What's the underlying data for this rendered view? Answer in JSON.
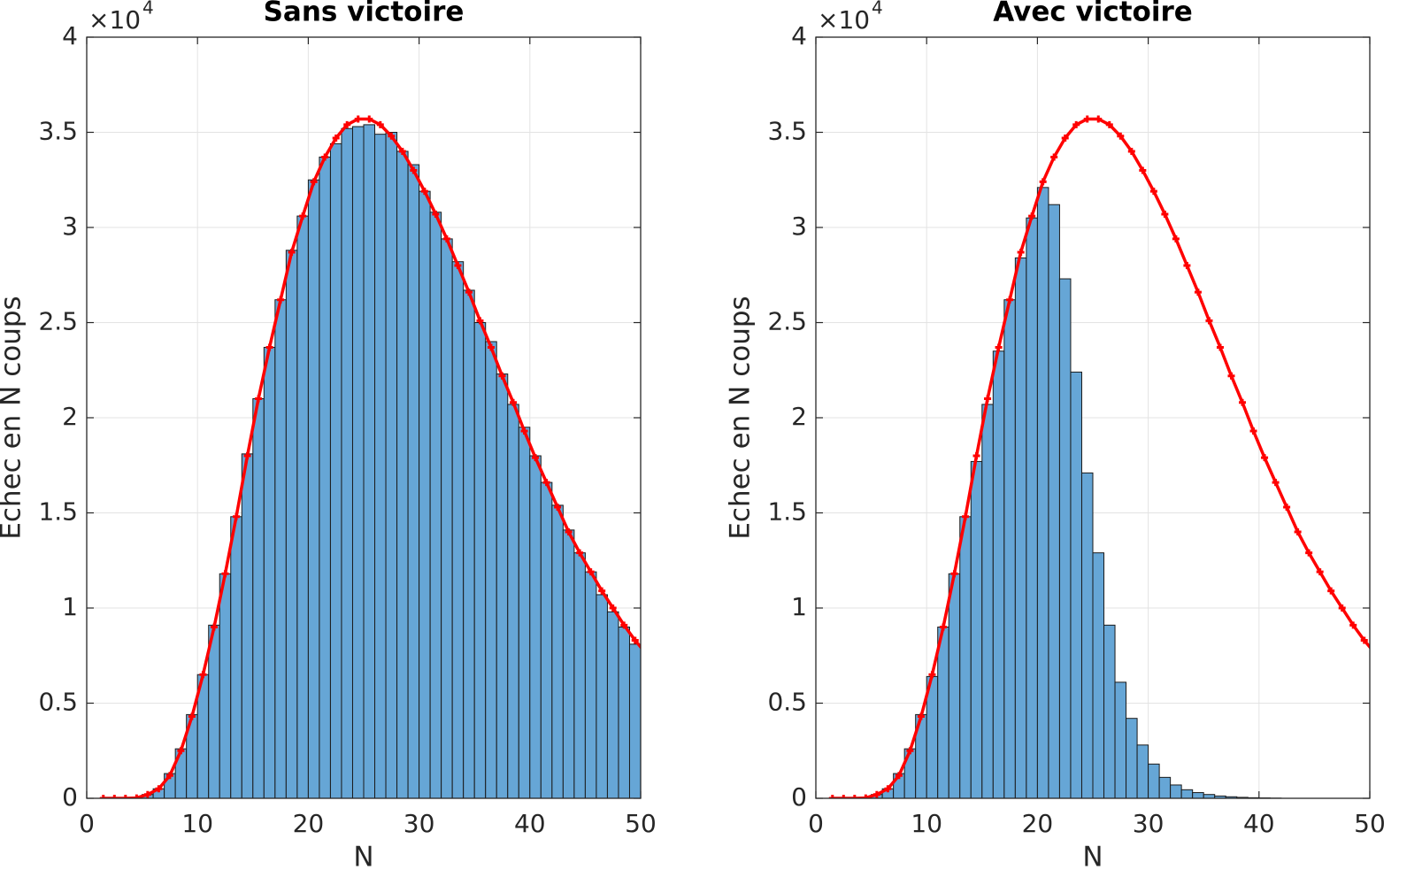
{
  "chart_data": [
    {
      "type": "histogram",
      "title": "Sans victoire",
      "xlabel": "N",
      "ylabel": "Echec en N coups",
      "y_multiplier": {
        "base": "×10",
        "exponent": "4"
      },
      "xlim": [
        0,
        50
      ],
      "ylim": [
        0,
        4
      ],
      "xticks": [
        0,
        10,
        20,
        30,
        40,
        50
      ],
      "yticks": [
        0,
        0.5,
        1,
        1.5,
        2,
        2.5,
        3,
        3.5,
        4
      ],
      "grid": true,
      "color": "#66a6d6",
      "bins": [
        0,
        1,
        2,
        3,
        4,
        5,
        6,
        7,
        8,
        9,
        10,
        11,
        12,
        13,
        14,
        15,
        16,
        17,
        18,
        19,
        20,
        21,
        22,
        23,
        24,
        25,
        26,
        27,
        28,
        29,
        30,
        31,
        32,
        33,
        34,
        35,
        36,
        37,
        38,
        39,
        40,
        41,
        42,
        43,
        44,
        45,
        46,
        47,
        48,
        49,
        50
      ],
      "values": [
        0,
        0,
        0,
        0,
        0,
        0.02,
        0.05,
        0.13,
        0.26,
        0.44,
        0.65,
        0.91,
        1.18,
        1.48,
        1.81,
        2.1,
        2.37,
        2.62,
        2.88,
        3.06,
        3.25,
        3.37,
        3.44,
        3.52,
        3.53,
        3.54,
        3.49,
        3.5,
        3.4,
        3.33,
        3.19,
        3.08,
        2.94,
        2.82,
        2.67,
        2.5,
        2.4,
        2.23,
        2.07,
        1.95,
        1.8,
        1.66,
        1.54,
        1.41,
        1.29,
        1.19,
        1.07,
        0.98,
        0.9,
        0.81
      ],
      "curve": {
        "color": "#ff0000",
        "x": [
          1.5,
          2.5,
          3.5,
          4.5,
          5.5,
          6.5,
          7.5,
          8.5,
          9.5,
          10.5,
          11.5,
          12.5,
          13.5,
          14.5,
          15.5,
          16.5,
          17.5,
          18.5,
          19.5,
          20.5,
          21.5,
          22.5,
          23.5,
          24.5,
          25.5,
          26.5,
          27.5,
          28.5,
          29.5,
          30.5,
          31.5,
          32.5,
          33.5,
          34.5,
          35.5,
          36.5,
          37.5,
          38.5,
          39.5,
          40.5,
          41.5,
          42.5,
          43.5,
          44.5,
          45.5,
          46.5,
          47.5,
          48.5,
          49.5,
          50.5
        ],
        "values": [
          0,
          0,
          0,
          0.002,
          0.02,
          0.05,
          0.12,
          0.25,
          0.43,
          0.65,
          0.9,
          1.18,
          1.48,
          1.8,
          2.1,
          2.37,
          2.62,
          2.87,
          3.06,
          3.24,
          3.37,
          3.47,
          3.54,
          3.57,
          3.57,
          3.54,
          3.48,
          3.4,
          3.3,
          3.19,
          3.07,
          2.94,
          2.8,
          2.66,
          2.51,
          2.37,
          2.22,
          2.08,
          1.93,
          1.79,
          1.66,
          1.53,
          1.4,
          1.29,
          1.19,
          1.09,
          1.0,
          0.91,
          0.83,
          0.76
        ]
      }
    },
    {
      "type": "histogram",
      "title": "Avec victoire",
      "xlabel": "N",
      "ylabel": "Echec en N coups",
      "y_multiplier": {
        "base": "×10",
        "exponent": "4"
      },
      "xlim": [
        0,
        50
      ],
      "ylim": [
        0,
        4
      ],
      "xticks": [
        0,
        10,
        20,
        30,
        40,
        50
      ],
      "yticks": [
        0,
        0.5,
        1,
        1.5,
        2,
        2.5,
        3,
        3.5,
        4
      ],
      "grid": true,
      "color": "#66a6d6",
      "bins": [
        0,
        1,
        2,
        3,
        4,
        5,
        6,
        7,
        8,
        9,
        10,
        11,
        12,
        13,
        14,
        15,
        16,
        17,
        18,
        19,
        20,
        21,
        22,
        23,
        24,
        25,
        26,
        27,
        28,
        29,
        30,
        31,
        32,
        33,
        34,
        35,
        36,
        37,
        38,
        39,
        40,
        41,
        42,
        43,
        44,
        45,
        46,
        47,
        48,
        49,
        50
      ],
      "values": [
        0,
        0,
        0,
        0,
        0,
        0.02,
        0.05,
        0.13,
        0.26,
        0.44,
        0.64,
        0.9,
        1.18,
        1.48,
        1.77,
        2.07,
        2.35,
        2.62,
        2.84,
        3.05,
        3.21,
        3.12,
        2.73,
        2.24,
        1.71,
        1.29,
        0.91,
        0.61,
        0.42,
        0.28,
        0.18,
        0.11,
        0.07,
        0.045,
        0.03,
        0.02,
        0.012,
        0.008,
        0.005,
        0.003,
        0.002,
        0.001,
        0,
        0,
        0,
        0,
        0,
        0,
        0,
        0
      ],
      "curve": {
        "color": "#ff0000",
        "x": [
          1.5,
          2.5,
          3.5,
          4.5,
          5.5,
          6.5,
          7.5,
          8.5,
          9.5,
          10.5,
          11.5,
          12.5,
          13.5,
          14.5,
          15.5,
          16.5,
          17.5,
          18.5,
          19.5,
          20.5,
          21.5,
          22.5,
          23.5,
          24.5,
          25.5,
          26.5,
          27.5,
          28.5,
          29.5,
          30.5,
          31.5,
          32.5,
          33.5,
          34.5,
          35.5,
          36.5,
          37.5,
          38.5,
          39.5,
          40.5,
          41.5,
          42.5,
          43.5,
          44.5,
          45.5,
          46.5,
          47.5,
          48.5,
          49.5,
          50.5
        ],
        "values": [
          0,
          0,
          0,
          0.002,
          0.02,
          0.05,
          0.12,
          0.25,
          0.43,
          0.65,
          0.9,
          1.18,
          1.48,
          1.8,
          2.1,
          2.37,
          2.62,
          2.87,
          3.06,
          3.24,
          3.37,
          3.47,
          3.54,
          3.57,
          3.57,
          3.54,
          3.48,
          3.4,
          3.3,
          3.19,
          3.07,
          2.94,
          2.8,
          2.66,
          2.51,
          2.37,
          2.22,
          2.08,
          1.93,
          1.79,
          1.66,
          1.53,
          1.4,
          1.29,
          1.19,
          1.09,
          1.0,
          0.91,
          0.83,
          0.76
        ]
      }
    }
  ]
}
